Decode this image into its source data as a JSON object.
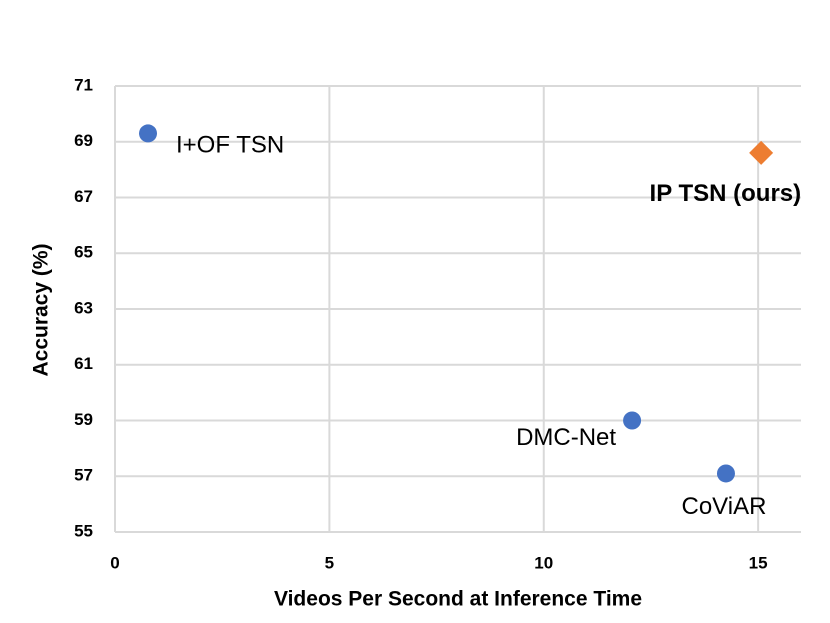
{
  "chart_data": {
    "type": "scatter",
    "x_label": "Videos Per Second at Inference Time",
    "y_label": "Accuracy (%)",
    "xlim": [
      0,
      16
    ],
    "xticks": [
      0,
      5,
      10,
      15
    ],
    "ylim": [
      55,
      71
    ],
    "yticks": [
      55,
      57,
      59,
      61,
      63,
      65,
      67,
      69,
      71
    ],
    "grid": true,
    "points": [
      {
        "label": "I+OF TSN",
        "x": 0.77,
        "y": 69.3,
        "color": "#4472c4",
        "marker": "circle"
      },
      {
        "label": "IP TSN (ours)",
        "x": 15.07,
        "y": 68.6,
        "color": "#ed7d31",
        "marker": "diamond"
      },
      {
        "label": "DMC-Net",
        "x": 12.06,
        "y": 59.0,
        "color": "#4472c4",
        "marker": "circle"
      },
      {
        "label": "CoViAR",
        "x": 14.25,
        "y": 57.1,
        "color": "#4472c4",
        "marker": "circle"
      }
    ]
  }
}
